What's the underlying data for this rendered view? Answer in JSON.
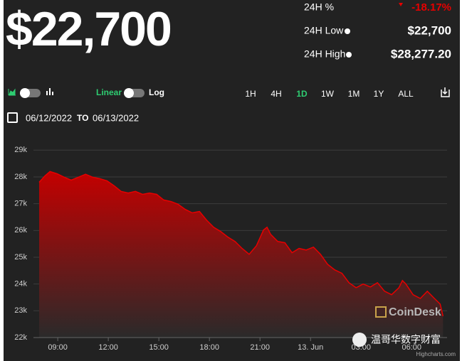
{
  "header": {
    "price": "$22,700",
    "change_label": "24H %",
    "change": "-18.17%",
    "low_label": "24H Low",
    "low": "$22,700",
    "high_label": "24H High",
    "high": "$28,277.20"
  },
  "controls": {
    "scale_linear": "Linear",
    "scale_log": "Log",
    "ranges": [
      "1H",
      "4H",
      "1D",
      "1W",
      "1M",
      "1Y",
      "ALL"
    ],
    "active_range": "1D",
    "date_from": "06/12/2022",
    "date_sep": "TO",
    "date_to": "06/13/2022"
  },
  "watermarks": {
    "brand": "CoinDesk",
    "channel": "温哥华数字财富",
    "credit": "Highcharts.com"
  },
  "chart_data": {
    "type": "area",
    "x": [
      7.9,
      8.24,
      8.54,
      8.96,
      9.38,
      9.8,
      10.23,
      10.65,
      11.07,
      11.49,
      11.92,
      12.34,
      12.76,
      13.18,
      13.61,
      14.03,
      14.45,
      14.87,
      15.29,
      15.72,
      16.14,
      16.56,
      16.98,
      17.41,
      17.83,
      18.25,
      18.67,
      19.1,
      19.52,
      19.94,
      20.36,
      20.79,
      21.21,
      21.42,
      21.63,
      22.05,
      22.48,
      22.9,
      23.32,
      23.74,
      24.17,
      24.59,
      25.01,
      25.43,
      25.86,
      26.28,
      26.7,
      27.12,
      27.55,
      27.97,
      28.39,
      28.81,
      29.24,
      29.45,
      29.66,
      30.08,
      30.51,
      30.93,
      31.35,
      31.69,
      31.86
    ],
    "series": [
      {
        "color": "#e60000",
        "values": [
          27800,
          28040,
          28200,
          28120,
          27990,
          27880,
          27990,
          28100,
          27990,
          27935,
          27855,
          27670,
          27460,
          27400,
          27460,
          27350,
          27400,
          27350,
          27140,
          27080,
          26980,
          26790,
          26660,
          26710,
          26390,
          26120,
          25960,
          25750,
          25590,
          25330,
          25110,
          25430,
          26020,
          26120,
          25860,
          25590,
          25540,
          25170,
          25330,
          25270,
          25380,
          25110,
          24740,
          24530,
          24400,
          24050,
          23860,
          24000,
          23890,
          24050,
          23730,
          23600,
          23860,
          24130,
          24000,
          23600,
          23460,
          23730,
          23460,
          23250,
          22800
        ]
      }
    ],
    "xlim": [
      7.56,
      32.1
    ],
    "xticks": [
      {
        "value": 9,
        "label": "09:00"
      },
      {
        "value": 12,
        "label": "12:00"
      },
      {
        "value": 15,
        "label": "15:00"
      },
      {
        "value": 18,
        "label": "18:00"
      },
      {
        "value": 21,
        "label": "21:00"
      },
      {
        "value": 24,
        "label": "13. Jun"
      },
      {
        "value": 27,
        "label": "03:00"
      },
      {
        "value": 30,
        "label": "06:00"
      }
    ],
    "ylim": [
      22000,
      29300
    ],
    "yticks": [
      {
        "value": 22000,
        "label": "22k"
      },
      {
        "value": 23000,
        "label": "23k"
      },
      {
        "value": 24000,
        "label": "24k"
      },
      {
        "value": 25000,
        "label": "25k"
      },
      {
        "value": 26000,
        "label": "26k"
      },
      {
        "value": 27000,
        "label": "27k"
      },
      {
        "value": 28000,
        "label": "28k"
      },
      {
        "value": 29000,
        "label": "29k"
      }
    ],
    "grid": true
  }
}
